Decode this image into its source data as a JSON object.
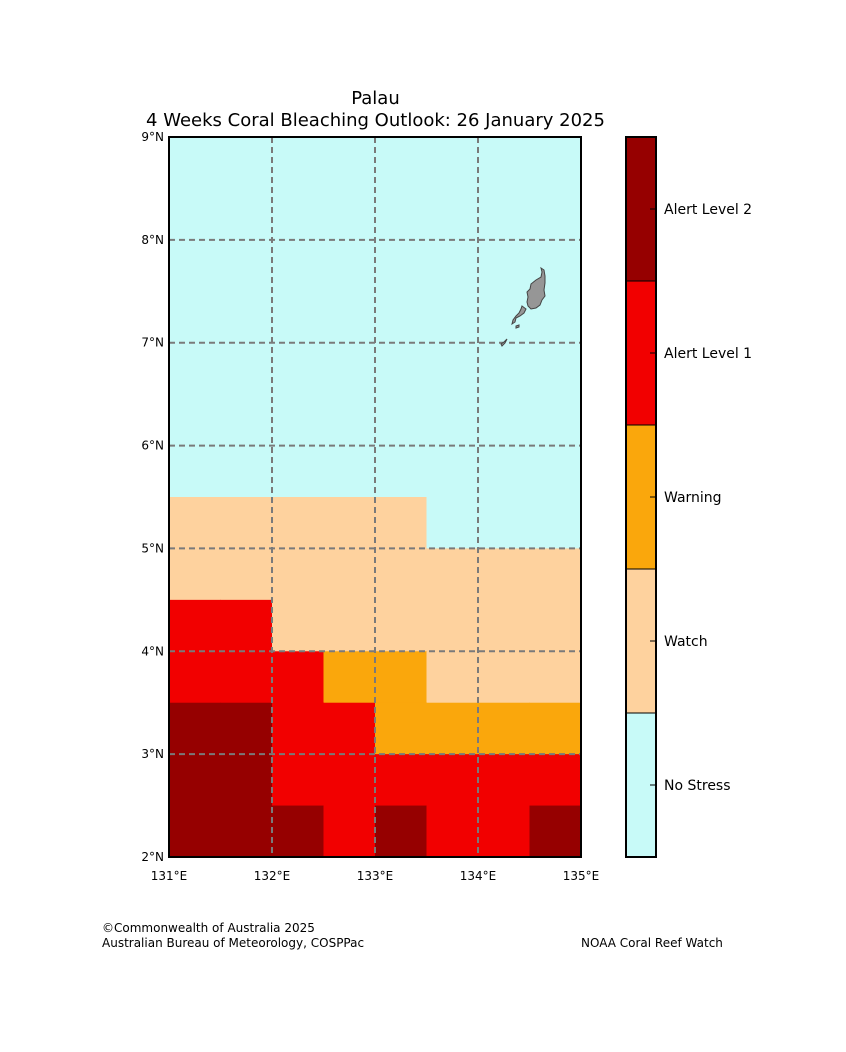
{
  "title": {
    "region": "Palau",
    "subtitle": "4 Weeks Coral Bleaching Outlook: 26 January 2025"
  },
  "chart_data": {
    "type": "heatmap",
    "lon_range": [
      131,
      135
    ],
    "lat_range": [
      2,
      9
    ],
    "cell_size_deg": 0.5,
    "x_ticks": [
      "131°E",
      "132°E",
      "133°E",
      "134°E",
      "135°E"
    ],
    "y_ticks": [
      "2°N",
      "3°N",
      "4°N",
      "5°N",
      "6°N",
      "7°N",
      "8°N",
      "9°N"
    ],
    "grid": true,
    "categories": [
      {
        "level": 0,
        "label": "No Stress",
        "color": "#c8faf8"
      },
      {
        "level": 1,
        "label": "Watch",
        "color": "#fed29e"
      },
      {
        "level": 2,
        "label": "Warning",
        "color": "#faa70c"
      },
      {
        "level": 3,
        "label": "Alert Level 1",
        "color": "#f20000"
      },
      {
        "level": 4,
        "label": "Alert Level 2",
        "color": "#960000"
      }
    ],
    "grid_rows_north_to_south": [
      [
        0,
        0,
        0,
        0,
        0,
        0,
        0,
        0
      ],
      [
        0,
        0,
        0,
        0,
        0,
        0,
        0,
        0
      ],
      [
        0,
        0,
        0,
        0,
        0,
        0,
        0,
        0
      ],
      [
        0,
        0,
        0,
        0,
        0,
        0,
        0,
        0
      ],
      [
        0,
        0,
        0,
        0,
        0,
        0,
        0,
        0
      ],
      [
        0,
        0,
        0,
        0,
        0,
        0,
        0,
        0
      ],
      [
        0,
        0,
        0,
        0,
        0,
        0,
        0,
        0
      ],
      [
        1,
        1,
        1,
        1,
        1,
        0,
        0,
        0
      ],
      [
        1,
        1,
        1,
        1,
        1,
        1,
        1,
        1
      ],
      [
        3,
        3,
        1,
        1,
        1,
        1,
        1,
        1
      ],
      [
        3,
        3,
        3,
        2,
        2,
        1,
        1,
        1
      ],
      [
        4,
        4,
        3,
        3,
        2,
        2,
        2,
        2
      ],
      [
        4,
        4,
        3,
        3,
        3,
        3,
        3,
        3
      ],
      [
        4,
        4,
        4,
        3,
        4,
        3,
        3,
        4
      ]
    ],
    "land": {
      "name": "Palau islands",
      "color": "#969696"
    }
  },
  "credits": {
    "line1": "©Commonwealth of Australia 2025",
    "line2": "Australian Bureau of Meteorology, COSPPac",
    "line3": "NOAA Coral Reef Watch"
  }
}
